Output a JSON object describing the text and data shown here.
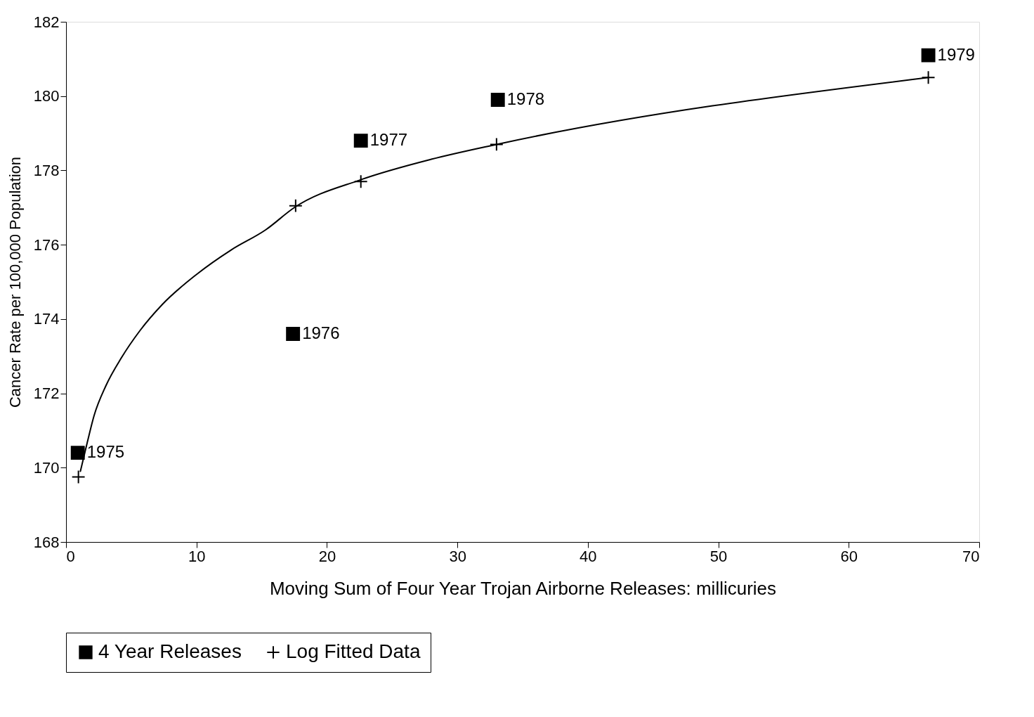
{
  "chart_data": {
    "type": "scatter",
    "xlabel": "Moving Sum of Four Year Trojan Airborne Releases: millicuries",
    "ylabel": "Cancer Rate per 100,000 Population",
    "xlim": [
      0,
      70
    ],
    "xticks": [
      0,
      10,
      20,
      30,
      40,
      50,
      60,
      70
    ],
    "ylim": [
      168,
      182
    ],
    "yticks": [
      168,
      170,
      172,
      174,
      176,
      178,
      180,
      182
    ],
    "annotations": [
      {
        "text": "1975",
        "x": 0.9,
        "y": 170.4
      },
      {
        "text": "1976",
        "x": 17.4,
        "y": 173.6
      },
      {
        "text": "1977",
        "x": 22.6,
        "y": 178.8
      },
      {
        "text": "1978",
        "x": 33.1,
        "y": 179.9
      },
      {
        "text": "1979",
        "x": 66.1,
        "y": 181.1
      }
    ],
    "grid": false,
    "legend": "bottom",
    "series": [
      {
        "name": "4 Year Releases",
        "marker": "square",
        "color": "#000000",
        "x": [
          0.9,
          17.4,
          22.6,
          33.1,
          66.1
        ],
        "values": [
          170.4,
          173.6,
          178.8,
          179.9,
          181.1
        ]
      },
      {
        "name": "Log Fitted Data",
        "marker": "cross",
        "color": "#000000",
        "x": [
          0.95,
          17.6,
          22.6,
          33.0,
          66.1
        ],
        "values": [
          169.75,
          177.05,
          177.7,
          178.7,
          180.5
        ]
      },
      {
        "type": "line",
        "marker": "none",
        "line_style": "solid",
        "color": "#000000",
        "x": [
          1.1,
          1.63,
          2.15,
          3.05,
          4.25,
          5.67,
          7.4,
          10.0,
          12.66,
          15.3,
          17.5,
          22.6,
          28.0,
          33.0,
          66.1
        ],
        "values": [
          169.9,
          170.68,
          171.4,
          172.2,
          172.96,
          173.69,
          174.4,
          175.2,
          175.86,
          176.4,
          177.0,
          177.75,
          178.3,
          178.7,
          180.5
        ]
      }
    ]
  }
}
